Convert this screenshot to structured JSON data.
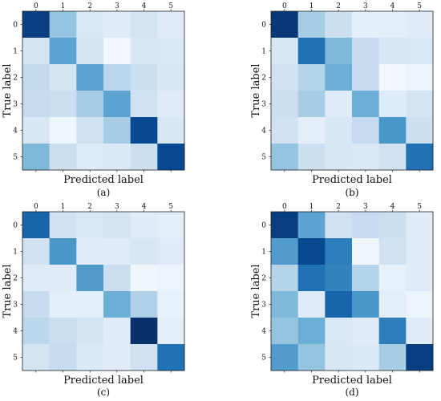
{
  "chart_data": [
    {
      "type": "heatmap",
      "caption": "(a)",
      "xlabel": "Predicted label",
      "ylabel": "True label",
      "x_categories": [
        "0",
        "1",
        "2",
        "3",
        "4",
        "5"
      ],
      "y_categories": [
        "0",
        "1",
        "2",
        "3",
        "4",
        "5"
      ],
      "colormap": "Blues",
      "values": [
        [
          0.95,
          0.4,
          0.15,
          0.12,
          0.18,
          0.12
        ],
        [
          0.18,
          0.55,
          0.18,
          0.03,
          0.16,
          0.15
        ],
        [
          0.26,
          0.18,
          0.55,
          0.28,
          0.22,
          0.16
        ],
        [
          0.25,
          0.22,
          0.35,
          0.55,
          0.2,
          0.12
        ],
        [
          0.16,
          0.04,
          0.2,
          0.35,
          0.9,
          0.16
        ],
        [
          0.45,
          0.22,
          0.13,
          0.14,
          0.22,
          0.9
        ]
      ]
    },
    {
      "type": "heatmap",
      "caption": "(b)",
      "xlabel": "Predicted label",
      "ylabel": "True label",
      "x_categories": [
        "0",
        "1",
        "2",
        "3",
        "4",
        "5"
      ],
      "y_categories": [
        "0",
        "1",
        "2",
        "3",
        "4",
        "5"
      ],
      "colormap": "Blues",
      "values": [
        [
          0.97,
          0.35,
          0.22,
          0.1,
          0.1,
          0.12
        ],
        [
          0.16,
          0.75,
          0.45,
          0.25,
          0.16,
          0.15
        ],
        [
          0.2,
          0.3,
          0.5,
          0.25,
          0.03,
          0.06
        ],
        [
          0.22,
          0.35,
          0.12,
          0.5,
          0.13,
          0.18
        ],
        [
          0.2,
          0.1,
          0.16,
          0.25,
          0.6,
          0.22
        ],
        [
          0.4,
          0.22,
          0.16,
          0.14,
          0.2,
          0.75
        ]
      ]
    },
    {
      "type": "heatmap",
      "caption": "(c)",
      "xlabel": "Predicted label",
      "ylabel": "True label",
      "x_categories": [
        "0",
        "1",
        "2",
        "3",
        "4",
        "5"
      ],
      "y_categories": [
        "0",
        "1",
        "2",
        "3",
        "4",
        "5"
      ],
      "colormap": "Blues",
      "values": [
        [
          0.8,
          0.2,
          0.15,
          0.18,
          0.12,
          0.1
        ],
        [
          0.2,
          0.6,
          0.12,
          0.12,
          0.16,
          0.12
        ],
        [
          0.12,
          0.12,
          0.58,
          0.22,
          0.04,
          0.06
        ],
        [
          0.25,
          0.1,
          0.1,
          0.5,
          0.32,
          0.08
        ],
        [
          0.28,
          0.22,
          0.18,
          0.12,
          1.0,
          0.1
        ],
        [
          0.18,
          0.25,
          0.14,
          0.12,
          0.2,
          0.75
        ]
      ]
    },
    {
      "type": "heatmap",
      "caption": "(d)",
      "xlabel": "Predicted label",
      "ylabel": "True label",
      "x_categories": [
        "0",
        "1",
        "2",
        "3",
        "4",
        "5"
      ],
      "y_categories": [
        "0",
        "1",
        "2",
        "3",
        "4",
        "5"
      ],
      "colormap": "Blues",
      "values": [
        [
          0.95,
          0.55,
          0.2,
          0.25,
          0.22,
          0.12
        ],
        [
          0.58,
          0.9,
          0.7,
          0.04,
          0.2,
          0.12
        ],
        [
          0.3,
          0.75,
          0.68,
          0.3,
          0.08,
          0.12
        ],
        [
          0.45,
          0.12,
          0.8,
          0.6,
          0.1,
          0.05
        ],
        [
          0.4,
          0.5,
          0.15,
          0.12,
          0.7,
          0.12
        ],
        [
          0.58,
          0.4,
          0.16,
          0.14,
          0.35,
          0.95
        ]
      ]
    }
  ]
}
